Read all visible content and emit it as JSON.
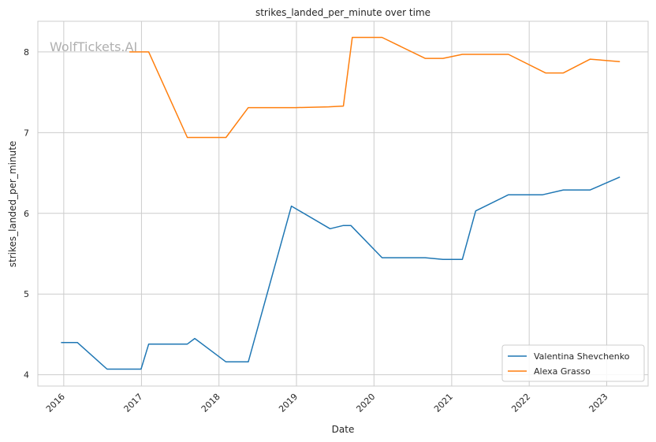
{
  "watermark": "WolfTickets.AI",
  "chart_data": {
    "type": "line",
    "title": "strikes_landed_per_minute over time",
    "xlabel": "Date",
    "ylabel": "strikes_landed_per_minute",
    "x_ticks": [
      "2016",
      "2017",
      "2018",
      "2019",
      "2020",
      "2021",
      "2022",
      "2023"
    ],
    "y_ticks": [
      "4",
      "5",
      "6",
      "7",
      "8"
    ],
    "xlim": [
      "2015-09-01",
      "2023-07-15"
    ],
    "ylim": [
      3.86,
      8.38
    ],
    "grid": true,
    "legend_position": "lower-right",
    "series": [
      {
        "name": "Valentina Shevchenko",
        "color": "#1f77b4",
        "points": [
          [
            "2015-12-19",
            4.4
          ],
          [
            "2016-03-05",
            4.4
          ],
          [
            "2016-07-23",
            4.07
          ],
          [
            "2016-12-30",
            4.07
          ],
          [
            "2017-02-04",
            4.38
          ],
          [
            "2017-08-05",
            4.38
          ],
          [
            "2017-09-09",
            4.45
          ],
          [
            "2018-02-03",
            4.16
          ],
          [
            "2018-05-19",
            4.16
          ],
          [
            "2018-12-08",
            6.09
          ],
          [
            "2019-06-08",
            5.81
          ],
          [
            "2019-08-10",
            5.85
          ],
          [
            "2019-09-14",
            5.85
          ],
          [
            "2020-02-08",
            5.45
          ],
          [
            "2020-08-29",
            5.45
          ],
          [
            "2020-11-21",
            5.43
          ],
          [
            "2021-02-20",
            5.43
          ],
          [
            "2021-04-24",
            6.03
          ],
          [
            "2021-09-25",
            6.23
          ],
          [
            "2022-03-05",
            6.23
          ],
          [
            "2022-06-11",
            6.29
          ],
          [
            "2022-10-15",
            6.29
          ],
          [
            "2023-03-04",
            6.45
          ]
        ]
      },
      {
        "name": "Alexa Grasso",
        "color": "#ff7f0e",
        "points": [
          [
            "2016-11-05",
            8.0
          ],
          [
            "2017-02-04",
            8.0
          ],
          [
            "2017-08-05",
            6.94
          ],
          [
            "2018-02-03",
            6.94
          ],
          [
            "2018-05-19",
            7.31
          ],
          [
            "2018-12-29",
            7.31
          ],
          [
            "2019-06-01",
            7.32
          ],
          [
            "2019-08-10",
            7.33
          ],
          [
            "2019-09-21",
            8.18
          ],
          [
            "2020-02-08",
            8.18
          ],
          [
            "2020-08-29",
            7.92
          ],
          [
            "2020-11-21",
            7.92
          ],
          [
            "2021-02-20",
            7.97
          ],
          [
            "2021-09-25",
            7.97
          ],
          [
            "2022-03-19",
            7.74
          ],
          [
            "2022-06-11",
            7.74
          ],
          [
            "2022-10-15",
            7.91
          ],
          [
            "2023-03-04",
            7.88
          ]
        ]
      }
    ]
  }
}
